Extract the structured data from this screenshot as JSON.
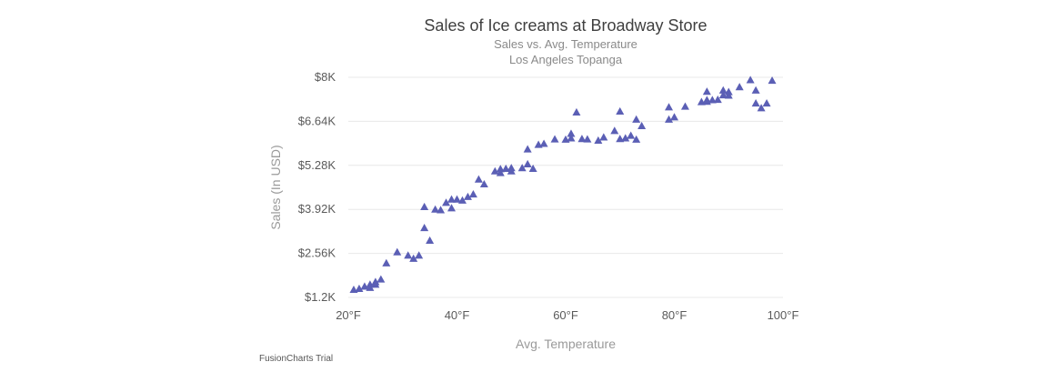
{
  "chart_data": {
    "type": "scatter",
    "title": "Sales of Ice creams at Broadway Store",
    "subtitle": "Sales vs. Avg. Temperature",
    "subtitle2": "Los Angeles Topanga",
    "xlabel": "Avg. Temperature",
    "ylabel": "Sales (In USD)",
    "xlim": [
      20,
      100
    ],
    "ylim": [
      1200,
      8000
    ],
    "x_ticks": [
      "20°F",
      "40°F",
      "60°F",
      "80°F",
      "100°F"
    ],
    "y_ticks": [
      "$1.2K",
      "$2.56K",
      "$3.92K",
      "$5.28K",
      "$6.64K",
      "$8K"
    ],
    "grid": true,
    "marker": "triangle",
    "marker_color": "#5b5fb5",
    "points": [
      {
        "x": 21,
        "y": 1440
      },
      {
        "x": 22,
        "y": 1470
      },
      {
        "x": 23,
        "y": 1540
      },
      {
        "x": 24,
        "y": 1600
      },
      {
        "x": 24,
        "y": 1500
      },
      {
        "x": 25,
        "y": 1680
      },
      {
        "x": 25,
        "y": 1600
      },
      {
        "x": 26,
        "y": 1760
      },
      {
        "x": 27,
        "y": 2260
      },
      {
        "x": 29,
        "y": 2600
      },
      {
        "x": 31,
        "y": 2500
      },
      {
        "x": 32,
        "y": 2400
      },
      {
        "x": 33,
        "y": 2500
      },
      {
        "x": 34,
        "y": 3350
      },
      {
        "x": 34,
        "y": 4000
      },
      {
        "x": 35,
        "y": 2960
      },
      {
        "x": 36,
        "y": 3920
      },
      {
        "x": 37,
        "y": 3900
      },
      {
        "x": 38,
        "y": 4130
      },
      {
        "x": 39,
        "y": 3960
      },
      {
        "x": 39,
        "y": 4230
      },
      {
        "x": 40,
        "y": 4230
      },
      {
        "x": 41,
        "y": 4200
      },
      {
        "x": 42,
        "y": 4310
      },
      {
        "x": 43,
        "y": 4390
      },
      {
        "x": 44,
        "y": 4850
      },
      {
        "x": 45,
        "y": 4700
      },
      {
        "x": 47,
        "y": 5100
      },
      {
        "x": 48,
        "y": 5170
      },
      {
        "x": 48,
        "y": 5050
      },
      {
        "x": 49,
        "y": 5180
      },
      {
        "x": 50,
        "y": 5200
      },
      {
        "x": 50,
        "y": 5100
      },
      {
        "x": 52,
        "y": 5200
      },
      {
        "x": 53,
        "y": 5320
      },
      {
        "x": 53,
        "y": 5780
      },
      {
        "x": 54,
        "y": 5180
      },
      {
        "x": 55,
        "y": 5920
      },
      {
        "x": 56,
        "y": 5950
      },
      {
        "x": 58,
        "y": 6090
      },
      {
        "x": 60,
        "y": 6080
      },
      {
        "x": 61,
        "y": 6120
      },
      {
        "x": 61,
        "y": 6260
      },
      {
        "x": 62,
        "y": 6920
      },
      {
        "x": 63,
        "y": 6100
      },
      {
        "x": 64,
        "y": 6090
      },
      {
        "x": 66,
        "y": 6050
      },
      {
        "x": 67,
        "y": 6150
      },
      {
        "x": 69,
        "y": 6350
      },
      {
        "x": 70,
        "y": 6950
      },
      {
        "x": 70,
        "y": 6100
      },
      {
        "x": 71,
        "y": 6120
      },
      {
        "x": 72,
        "y": 6200
      },
      {
        "x": 73,
        "y": 6700
      },
      {
        "x": 73,
        "y": 6080
      },
      {
        "x": 74,
        "y": 6500
      },
      {
        "x": 79,
        "y": 7080
      },
      {
        "x": 79,
        "y": 6700
      },
      {
        "x": 80,
        "y": 6770
      },
      {
        "x": 82,
        "y": 7100
      },
      {
        "x": 85,
        "y": 7240
      },
      {
        "x": 86,
        "y": 7300
      },
      {
        "x": 86,
        "y": 7560
      },
      {
        "x": 86,
        "y": 7250
      },
      {
        "x": 87,
        "y": 7300
      },
      {
        "x": 88,
        "y": 7310
      },
      {
        "x": 89,
        "y": 7450
      },
      {
        "x": 89,
        "y": 7600
      },
      {
        "x": 90,
        "y": 7440
      },
      {
        "x": 90,
        "y": 7550
      },
      {
        "x": 92,
        "y": 7700
      },
      {
        "x": 94,
        "y": 7920
      },
      {
        "x": 95,
        "y": 7600
      },
      {
        "x": 95,
        "y": 7200
      },
      {
        "x": 96,
        "y": 7050
      },
      {
        "x": 97,
        "y": 7200
      },
      {
        "x": 98,
        "y": 7900
      }
    ]
  },
  "watermark": "FusionCharts Trial"
}
